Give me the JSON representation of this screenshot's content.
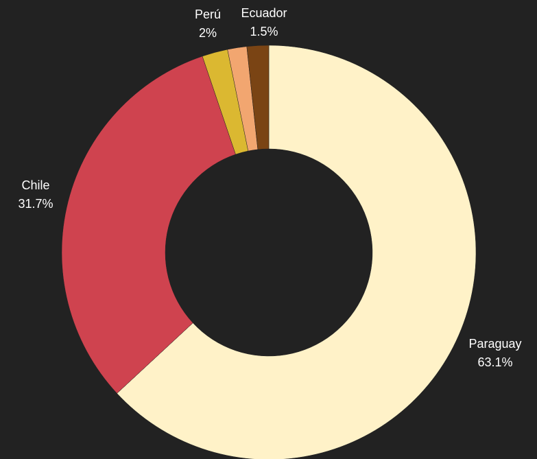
{
  "chart_data": {
    "type": "pie",
    "donut": true,
    "categories": [
      "Paraguay",
      "Chile",
      "Perú",
      "Ecuador",
      null
    ],
    "values": [
      63.1,
      31.7,
      2,
      1.5,
      1.7
    ],
    "value_labels": [
      "63.1%",
      "31.7%",
      "2%",
      "1.5%",
      null
    ],
    "colors": [
      "#fff2c8",
      "#cf434f",
      "#dbb831",
      "#f2a670",
      "#7a4414"
    ]
  }
}
